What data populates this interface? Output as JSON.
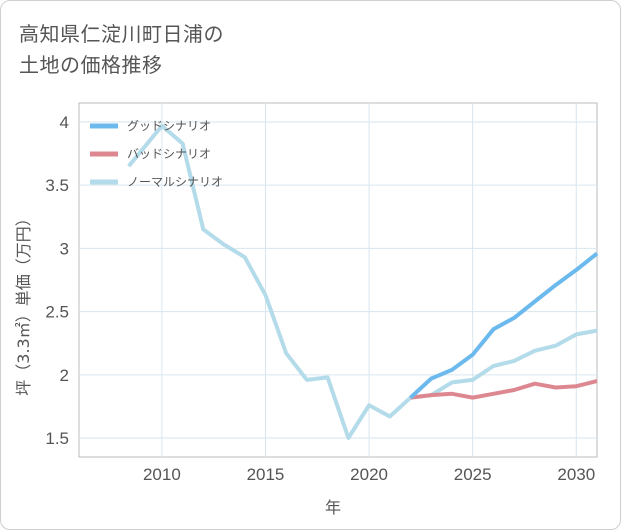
{
  "title": {
    "line1": "高知県仁淀川町日浦の",
    "line2": "土地の価格推移"
  },
  "chart_data": {
    "type": "line",
    "xlabel": "年",
    "ylabel": "坪（3.3㎡）単価（万円）",
    "xlim": [
      2006,
      2031
    ],
    "ylim": [
      1.35,
      4.15
    ],
    "xticks": [
      2010,
      2015,
      2020,
      2025,
      2030
    ],
    "yticks": [
      1.5,
      2,
      2.5,
      3,
      3.5,
      4
    ],
    "ytick_labels": [
      "1.5",
      "2",
      "2.5",
      "3",
      "3.5",
      "4"
    ],
    "grid": true,
    "legend_position": "top-left",
    "series": [
      {
        "name": "グッドシナリオ",
        "color": "#6cb9ee",
        "x": [
          2022,
          2023,
          2024,
          2025,
          2026,
          2027,
          2028,
          2029,
          2030,
          2031
        ],
        "y": [
          1.82,
          1.97,
          2.04,
          2.16,
          2.36,
          2.45,
          2.58,
          2.71,
          2.83,
          2.96
        ]
      },
      {
        "name": "バッドシナリオ",
        "color": "#dd8890",
        "x": [
          2022,
          2023,
          2024,
          2025,
          2026,
          2027,
          2028,
          2029,
          2030,
          2031
        ],
        "y": [
          1.82,
          1.84,
          1.85,
          1.82,
          1.85,
          1.88,
          1.93,
          1.9,
          1.91,
          1.95
        ]
      },
      {
        "name": "ノーマルシナリオ",
        "color": "#b4dbea",
        "x": [
          2008.4,
          2010,
          2011,
          2012,
          2013,
          2014,
          2015,
          2016,
          2017,
          2018,
          2019,
          2020,
          2021,
          2022,
          2023,
          2024,
          2025,
          2026,
          2027,
          2028,
          2029,
          2030,
          2031
        ],
        "y": [
          3.65,
          3.97,
          3.83,
          3.15,
          3.03,
          2.93,
          2.63,
          2.17,
          1.96,
          1.98,
          1.5,
          1.76,
          1.67,
          1.82,
          1.84,
          1.94,
          1.96,
          2.07,
          2.11,
          2.19,
          2.23,
          2.32,
          2.35
        ]
      }
    ]
  }
}
